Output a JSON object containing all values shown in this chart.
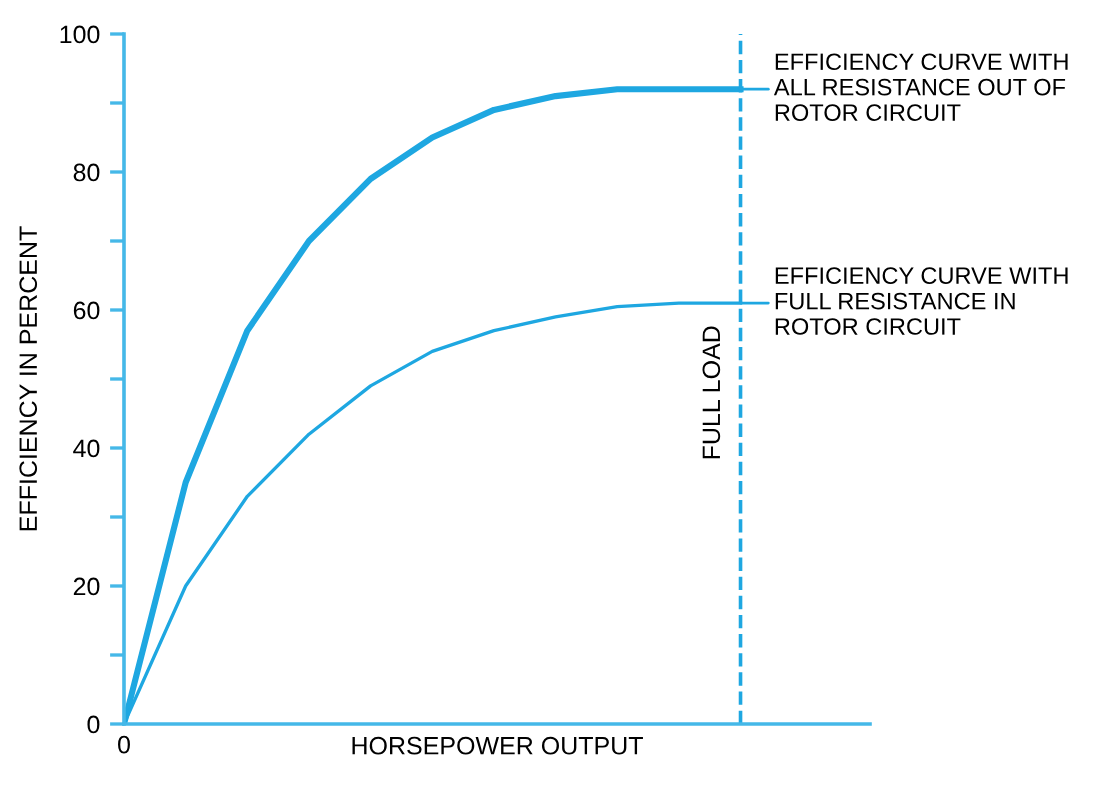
{
  "chart_data": {
    "type": "line",
    "xlabel": "HORSEPOWER OUTPUT",
    "ylabel": "EFFICIENCY IN PERCENT",
    "categories": [
      "0",
      null,
      null,
      null,
      null,
      null,
      null,
      null,
      null,
      null,
      null
    ],
    "series": [
      {
        "color": "#1ea7e1",
        "values": [
          0,
          35,
          57,
          70,
          79,
          85,
          89,
          91,
          92,
          92,
          92
        ]
      },
      {
        "color": "#1ea7e1",
        "values": [
          0,
          20,
          33,
          42,
          49,
          54,
          57,
          59,
          60.5,
          61,
          61
        ]
      }
    ],
    "ylim": [
      0,
      100
    ],
    "yticks": [
      0,
      {
        "value": 10,
        "label": null
      },
      20,
      {
        "value": 30,
        "label": null
      },
      40,
      {
        "value": 50,
        "label": null
      },
      60,
      {
        "value": 70,
        "label": null
      },
      80,
      {
        "value": 90,
        "label": null
      },
      100
    ],
    "ref_lines": [
      {
        "axis": "x",
        "label": "FULL LOAD",
        "color": "#1ea7e1",
        "line_style": "dashed"
      }
    ],
    "annotations": [
      "EFFICIENCY CURVE WITH\nALL RESISTANCE OUT OF\nROTOR CIRCUIT",
      "EFFICIENCY CURVE WITH\nFULL RESISTANCE IN\nROTOR CIRCUIT"
    ],
    "grid": false,
    "legend": false,
    "marker": "none",
    "line_style": "solid"
  }
}
